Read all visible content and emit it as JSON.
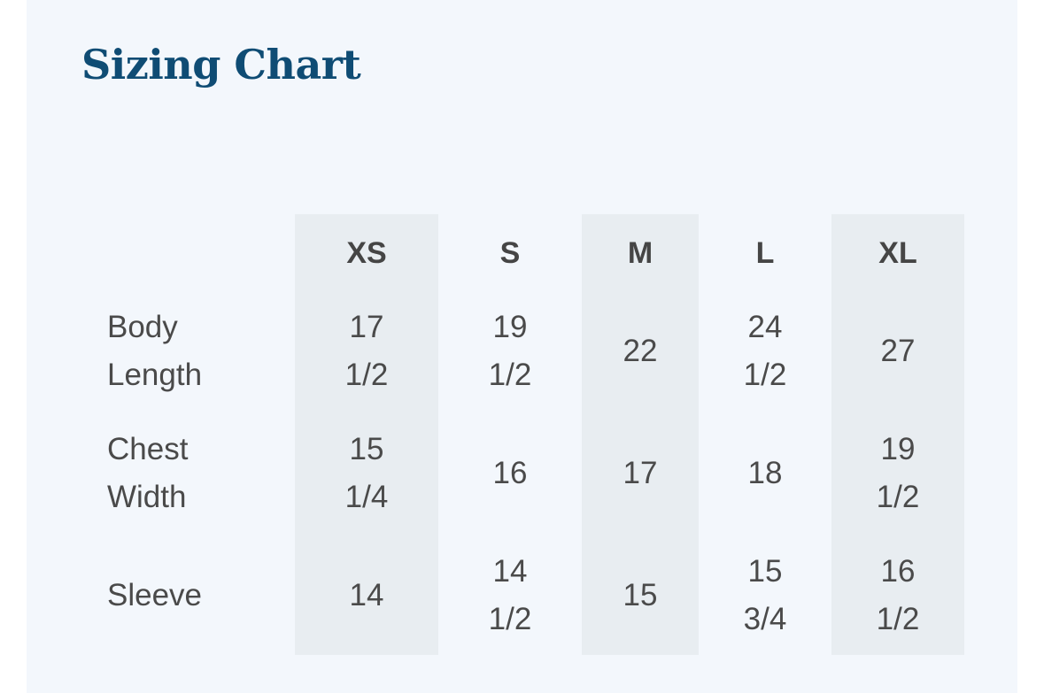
{
  "title": "Sizing Chart",
  "sizes": [
    "XS",
    "S",
    "M",
    "L",
    "XL"
  ],
  "rows": [
    {
      "label": "Body\nLength",
      "values": [
        "17\n1/2",
        "19\n1/2",
        "22",
        "24\n1/2",
        "27"
      ]
    },
    {
      "label": "Chest\nWidth",
      "values": [
        "15\n1/4",
        "16",
        "17",
        "18",
        "19\n1/2"
      ]
    },
    {
      "label": "Sleeve",
      "values": [
        "14",
        "14\n1/2",
        "15",
        "15\n3/4",
        "16\n1/2"
      ]
    }
  ],
  "colors": {
    "title": "#0f4c74",
    "card_background": "#f3f7fc",
    "column_stripe": "#e8edf1",
    "text": "#4a4a4a"
  }
}
